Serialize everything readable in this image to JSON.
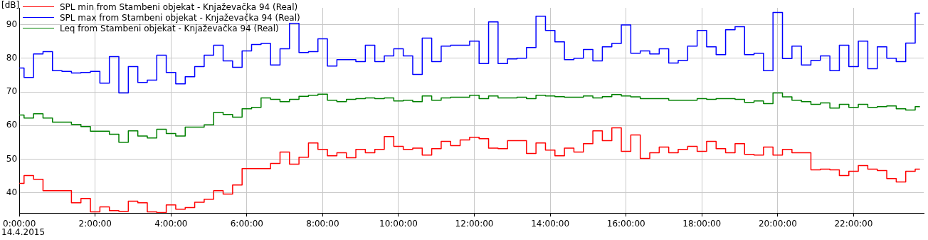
{
  "chart_data": {
    "type": "step",
    "ylabel": "[dB]",
    "annotations": [
      "14.4.2015"
    ],
    "x": [
      0,
      0.25,
      0.5,
      0.75,
      1,
      1.25,
      1.5,
      1.75,
      2,
      2.25,
      2.5,
      2.75,
      3,
      3.25,
      3.5,
      3.75,
      4,
      4.25,
      4.5,
      4.75,
      5,
      5.25,
      5.5,
      5.75,
      6,
      6.25,
      6.5,
      6.75,
      7,
      7.25,
      7.5,
      7.75,
      8,
      8.25,
      8.5,
      8.75,
      9,
      9.25,
      9.5,
      9.75,
      10,
      10.25,
      10.5,
      10.75,
      11,
      11.25,
      11.5,
      11.75,
      12,
      12.25,
      12.5,
      12.75,
      13,
      13.25,
      13.5,
      13.75,
      14,
      14.25,
      14.5,
      14.75,
      15,
      15.25,
      15.5,
      15.75,
      16,
      16.25,
      16.5,
      16.75,
      17,
      17.25,
      17.5,
      17.75,
      18,
      18.25,
      18.5,
      18.75,
      19,
      19.25,
      19.5,
      19.75,
      20,
      20.25,
      20.5,
      20.75,
      21,
      21.25,
      21.5,
      21.75,
      22,
      22.25,
      22.5,
      22.75,
      23,
      23.25,
      23.5,
      23.75
    ],
    "series": [
      {
        "name": "SPL min from Stambeni objekat - Knjaževačka 94 (Real)",
        "color": "#ff0000",
        "values": [
          42.8,
          45.1,
          44.0,
          40.6,
          40.6,
          40.6,
          37.0,
          38.3,
          34.3,
          35.8,
          34.7,
          34.5,
          37.5,
          37.0,
          34.3,
          34.1,
          36.4,
          35.1,
          35.6,
          37.2,
          38.1,
          40.6,
          39.6,
          42.3,
          47.2,
          47.2,
          47.2,
          48.7,
          52.1,
          48.5,
          50.6,
          54.8,
          52.9,
          51.0,
          51.9,
          50.4,
          52.9,
          51.9,
          52.9,
          56.7,
          53.8,
          52.9,
          53.3,
          51.2,
          53.1,
          55.3,
          54.0,
          55.7,
          56.5,
          56.1,
          53.3,
          53.1,
          55.5,
          55.5,
          51.7,
          54.8,
          52.7,
          51.0,
          53.3,
          52.1,
          54.6,
          58.4,
          55.5,
          59.3,
          52.3,
          57.2,
          50.2,
          51.9,
          53.6,
          51.9,
          52.9,
          53.8,
          52.3,
          55.3,
          53.1,
          51.9,
          54.6,
          51.4,
          51.2,
          53.6,
          51.2,
          52.9,
          51.9,
          51.9,
          46.8,
          47.0,
          46.8,
          45.1,
          46.4,
          48.1,
          47.0,
          46.6,
          44.2,
          43.2,
          46.4,
          47.0
        ]
      },
      {
        "name": "SPL max from Stambeni objekat - Knjaževačka 94 (Real)",
        "color": "#0000ff",
        "values": [
          77.1,
          74.3,
          81.3,
          82.0,
          76.3,
          76.1,
          75.6,
          75.8,
          76.1,
          72.6,
          80.5,
          69.7,
          77.5,
          72.8,
          73.5,
          80.9,
          75.8,
          72.4,
          74.5,
          77.5,
          80.9,
          83.9,
          79.2,
          77.3,
          82.2,
          84.1,
          84.4,
          78.0,
          82.8,
          90.4,
          81.7,
          82.0,
          85.8,
          77.7,
          79.6,
          79.6,
          79.0,
          83.9,
          79.0,
          80.7,
          82.8,
          80.7,
          75.2,
          86.0,
          79.0,
          83.6,
          83.9,
          83.9,
          85.1,
          78.4,
          90.8,
          78.4,
          79.8,
          80.0,
          83.2,
          92.5,
          88.3,
          84.9,
          79.6,
          80.0,
          82.6,
          79.2,
          83.4,
          84.4,
          89.9,
          81.5,
          82.2,
          81.3,
          82.8,
          78.6,
          79.4,
          83.6,
          88.3,
          83.4,
          81.1,
          88.5,
          89.4,
          81.1,
          81.5,
          76.3,
          93.6,
          79.9,
          83.6,
          78.0,
          79.4,
          80.7,
          76.3,
          83.9,
          77.5,
          85.1,
          76.9,
          83.4,
          80.0,
          79.0,
          84.5,
          93.4
        ]
      },
      {
        "name": "Leq from Stambeni objekat - Knjaževačka 94 (Real)",
        "color": "#008000",
        "values": [
          63.1,
          62.2,
          63.5,
          62.2,
          61.0,
          61.0,
          60.3,
          59.7,
          58.3,
          58.3,
          57.4,
          55.0,
          58.4,
          56.9,
          56.3,
          58.9,
          57.6,
          56.9,
          59.5,
          59.5,
          60.2,
          63.9,
          63.3,
          62.5,
          65.0,
          65.4,
          68.2,
          67.8,
          67.1,
          67.8,
          68.7,
          69.0,
          69.3,
          67.5,
          67.1,
          67.8,
          68.0,
          68.2,
          68.0,
          68.2,
          67.3,
          67.5,
          67.1,
          68.8,
          67.5,
          68.2,
          68.4,
          68.4,
          69.0,
          68.0,
          68.8,
          68.2,
          68.2,
          68.4,
          68.0,
          69.0,
          68.8,
          68.6,
          68.4,
          68.4,
          68.8,
          68.2,
          68.6,
          69.2,
          68.8,
          68.5,
          68.0,
          68.0,
          68.0,
          67.5,
          67.5,
          67.5,
          68.0,
          67.8,
          68.0,
          68.0,
          67.8,
          66.9,
          67.3,
          66.5,
          69.7,
          68.5,
          67.5,
          67.1,
          66.3,
          66.7,
          65.2,
          66.3,
          65.4,
          66.3,
          65.4,
          65.6,
          65.8,
          65.0,
          64.6,
          65.6
        ]
      }
    ],
    "xlim": [
      0,
      23.85
    ],
    "ylim": [
      34,
      95
    ],
    "xticks": [
      {
        "value": 0,
        "label": "0:00:00"
      },
      {
        "value": 2,
        "label": "2:00:00"
      },
      {
        "value": 4,
        "label": "4:00:00"
      },
      {
        "value": 6,
        "label": "6:00:00"
      },
      {
        "value": 8,
        "label": "8:00:00"
      },
      {
        "value": 10,
        "label": "10:00:00"
      },
      {
        "value": 12,
        "label": "12:00:00"
      },
      {
        "value": 14,
        "label": "14:00:00"
      },
      {
        "value": 16,
        "label": "16:00:00"
      },
      {
        "value": 18,
        "label": "18:00:00"
      },
      {
        "value": 20,
        "label": "20:00:00"
      },
      {
        "value": 22,
        "label": "22:00:00"
      }
    ],
    "yticks": [
      40,
      50,
      60,
      70,
      80,
      90
    ],
    "grid": true,
    "legend": "top left",
    "marker": "none",
    "line_style": "solid"
  }
}
